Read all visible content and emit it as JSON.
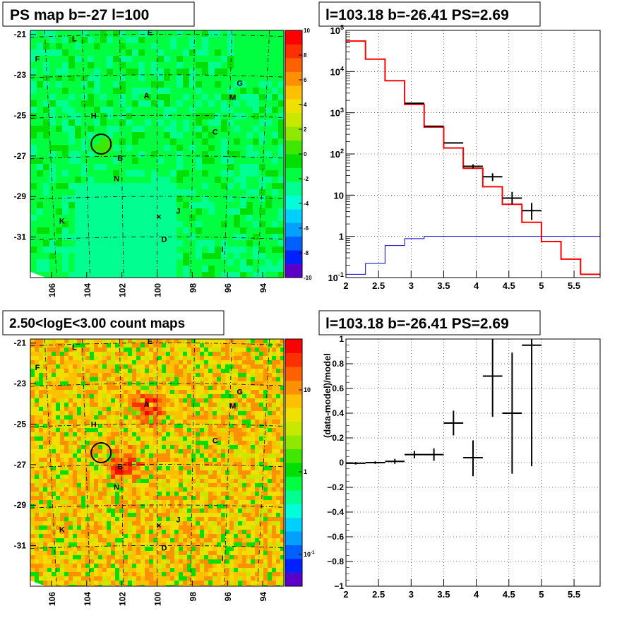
{
  "titles": {
    "map_top": "PS map b=-27 l=100",
    "map_bottom": "2.50<logE<3.00 count maps",
    "spectrum": "l=103.18 b=-26.41 PS=2.69",
    "residual": "l=103.18 b=-26.41 PS=2.69"
  },
  "colors": {
    "data": "#000000",
    "model": "#ff0000",
    "background_model": "#0000cc",
    "ps_map_fill": "#00ee33",
    "count_map_fill": "#e8df30",
    "circle": "#000000"
  },
  "chart_data": [
    {
      "type": "heatmap",
      "title": "PS map b=-27 l=100",
      "xlabel": "",
      "ylabel": "",
      "x_ticks": [
        "106",
        "104",
        "102",
        "100",
        "98",
        "96",
        "94"
      ],
      "y_ticks": [
        "-21",
        "-23",
        "-25",
        "-27",
        "-29",
        "-31"
      ],
      "xlim": [
        107.2,
        92.8
      ],
      "ylim": [
        -33,
        -20.8
      ],
      "colorbar": {
        "scale": "linear",
        "range": [
          -10,
          10
        ],
        "ticks": [
          "10",
          "8",
          "6",
          "4",
          "2",
          "0",
          "-2",
          "-4",
          "-6",
          "-8",
          "-10"
        ],
        "palette": [
          "#5a00c8",
          "#0020ff",
          "#0060ff",
          "#00a0ff",
          "#00d0ff",
          "#00ffd8",
          "#00ff90",
          "#00ff40",
          "#00e000",
          "#40e800",
          "#90e800",
          "#c8e800",
          "#f0e000",
          "#ffc000",
          "#ff9000",
          "#ff6000",
          "#ff3000",
          "#ff0000"
        ]
      },
      "markers": [
        {
          "label": "E",
          "l": 100.4,
          "b": -20.9
        },
        {
          "label": "L",
          "l": 104.7,
          "b": -21.2
        },
        {
          "label": "F",
          "l": 106.8,
          "b": -22.2
        },
        {
          "label": "G",
          "l": 95.3,
          "b": -23.4
        },
        {
          "label": "M",
          "l": 95.7,
          "b": -24.1
        },
        {
          "label": "A",
          "l": 100.6,
          "b": -24.0
        },
        {
          "label": "H",
          "l": 103.6,
          "b": -25.0
        },
        {
          "label": "C",
          "l": 96.7,
          "b": -25.8
        },
        {
          "label": "B",
          "l": 102.1,
          "b": -27.1
        },
        {
          "label": "N",
          "l": 102.3,
          "b": -28.1
        },
        {
          "label": "J",
          "l": 98.8,
          "b": -29.7
        },
        {
          "label": "K",
          "l": 105.4,
          "b": -30.2
        },
        {
          "label": "D",
          "l": 99.6,
          "b": -31.1
        },
        {
          "label": "I",
          "l": 96.3,
          "b": -31.6
        }
      ],
      "source_circle": {
        "l": 103.18,
        "b": -26.41
      },
      "cross": {
        "l": 99.9,
        "b": -30.0
      }
    },
    {
      "type": "heatmap",
      "title": "2.50<logE<3.00 count maps",
      "xlabel": "",
      "ylabel": "",
      "x_ticks": [
        "106",
        "104",
        "102",
        "100",
        "98",
        "96",
        "94"
      ],
      "y_ticks": [
        "-21",
        "-23",
        "-25",
        "-27",
        "-29",
        "-31"
      ],
      "xlim": [
        107.2,
        92.8
      ],
      "ylim": [
        -33,
        -20.8
      ],
      "colorbar": {
        "scale": "log",
        "ticks": [
          "10",
          "1",
          "10^-1"
        ],
        "palette": [
          "#5a00c8",
          "#0020ff",
          "#0060ff",
          "#00a0ff",
          "#00d0ff",
          "#00ffd8",
          "#00ff90",
          "#00ff40",
          "#00e000",
          "#40e800",
          "#90e800",
          "#c8e800",
          "#f0e000",
          "#ffc000",
          "#ff9000",
          "#ff6000",
          "#ff3000",
          "#ff0000"
        ]
      },
      "hotspots": [
        {
          "label": "A",
          "l": 100.6,
          "b": -24.0
        },
        {
          "label": "B",
          "l": 102.0,
          "b": -27.0
        }
      ],
      "markers": [
        {
          "label": "E",
          "l": 100.4,
          "b": -20.9
        },
        {
          "label": "L",
          "l": 104.7,
          "b": -21.2
        },
        {
          "label": "F",
          "l": 106.8,
          "b": -22.2
        },
        {
          "label": "G",
          "l": 95.3,
          "b": -23.4
        },
        {
          "label": "M",
          "l": 95.7,
          "b": -24.1
        },
        {
          "label": "A",
          "l": 100.6,
          "b": -24.0
        },
        {
          "label": "H",
          "l": 103.6,
          "b": -25.0
        },
        {
          "label": "C",
          "l": 96.7,
          "b": -25.8
        },
        {
          "label": "B",
          "l": 102.1,
          "b": -27.1
        },
        {
          "label": "N",
          "l": 102.3,
          "b": -28.1
        },
        {
          "label": "J",
          "l": 98.8,
          "b": -29.7
        },
        {
          "label": "K",
          "l": 105.4,
          "b": -30.2
        },
        {
          "label": "D",
          "l": 99.6,
          "b": -31.1
        },
        {
          "label": "I",
          "l": 96.3,
          "b": -31.6
        }
      ],
      "source_circle": {
        "l": 103.18,
        "b": -26.41
      },
      "cross": {
        "l": 99.9,
        "b": -30.0
      }
    },
    {
      "type": "line",
      "title": "l=103.18 b=-26.41 PS=2.69",
      "xlabel": "",
      "ylabel": "",
      "xlim": [
        2,
        5.9
      ],
      "ylim": [
        0.1,
        100000
      ],
      "yscale": "log",
      "grid": true,
      "x_ticks": [
        "2",
        "2.5",
        "3",
        "3.5",
        "4",
        "4.5",
        "5",
        "5.5"
      ],
      "y_ticks": [
        "10^-1",
        "1",
        "10",
        "10^2",
        "10^3",
        "10^4",
        "10^5"
      ],
      "bin_edges": [
        2.0,
        2.3,
        2.6,
        2.9,
        3.2,
        3.5,
        3.8,
        4.1,
        4.4,
        4.7,
        5.0,
        5.3,
        5.6,
        5.9
      ],
      "series": [
        {
          "kind": "model",
          "values": [
            55000,
            20000,
            6000,
            1600,
            450,
            140,
            45,
            16,
            6,
            2.2,
            0.75,
            0.28,
            0.12
          ]
        },
        {
          "kind": "background",
          "values": [
            0.12,
            0.22,
            0.6,
            0.88,
            1.0,
            1.0,
            1.0,
            1.0,
            1.0,
            1.0,
            1.0,
            1.0,
            1.0
          ]
        },
        {
          "kind": "data",
          "points": [
            {
              "x": 3.05,
              "y": 1700,
              "dx": 0.15
            },
            {
              "x": 3.35,
              "y": 470,
              "dx": 0.15
            },
            {
              "x": 3.65,
              "y": 185,
              "dx": 0.15
            },
            {
              "x": 3.95,
              "y": 50,
              "dx": 0.15,
              "ylo": 44,
              "yhi": 56
            },
            {
              "x": 4.25,
              "y": 28,
              "dx": 0.15,
              "ylo": 22,
              "yhi": 34
            },
            {
              "x": 4.55,
              "y": 8.5,
              "dx": 0.15,
              "ylo": 6,
              "yhi": 12
            },
            {
              "x": 4.85,
              "y": 4.2,
              "dx": 0.15,
              "ylo": 2.5,
              "yhi": 6.5
            }
          ]
        }
      ]
    },
    {
      "type": "scatter",
      "title": "l=103.18 b=-26.41 PS=2.69",
      "xlabel": "",
      "ylabel": "(data-model)/model",
      "xlim": [
        2,
        5.9
      ],
      "ylim": [
        -1,
        1
      ],
      "grid": true,
      "x_ticks": [
        "2",
        "2.5",
        "3",
        "3.5",
        "4",
        "4.5",
        "5",
        "5.5"
      ],
      "y_ticks": [
        "1",
        "0.8",
        "0.6",
        "0.4",
        "0.2",
        "0",
        "−0.2",
        "−0.4",
        "−0.6",
        "−0.8",
        "−1"
      ],
      "points": [
        {
          "x": 2.15,
          "y": -0.005,
          "dx": 0.15,
          "ylo": -0.015,
          "yhi": 0.005
        },
        {
          "x": 2.45,
          "y": 0.0,
          "dx": 0.15,
          "ylo": -0.01,
          "yhi": 0.01
        },
        {
          "x": 2.75,
          "y": 0.01,
          "dx": 0.15,
          "ylo": -0.01,
          "yhi": 0.03
        },
        {
          "x": 3.05,
          "y": 0.065,
          "dx": 0.15,
          "ylo": 0.035,
          "yhi": 0.095
        },
        {
          "x": 3.35,
          "y": 0.065,
          "dx": 0.15,
          "ylo": 0.015,
          "yhi": 0.115
        },
        {
          "x": 3.65,
          "y": 0.32,
          "dx": 0.15,
          "ylo": 0.22,
          "yhi": 0.42
        },
        {
          "x": 3.95,
          "y": 0.04,
          "dx": 0.15,
          "ylo": -0.11,
          "yhi": 0.18
        },
        {
          "x": 4.25,
          "y": 0.7,
          "dx": 0.15,
          "ylo": 0.37,
          "yhi": 1.0
        },
        {
          "x": 4.55,
          "y": 0.4,
          "dx": 0.15,
          "ylo": -0.09,
          "yhi": 0.89
        },
        {
          "x": 4.85,
          "y": 0.95,
          "dx": 0.15,
          "ylo": -0.03,
          "yhi": 1.0
        }
      ]
    }
  ]
}
